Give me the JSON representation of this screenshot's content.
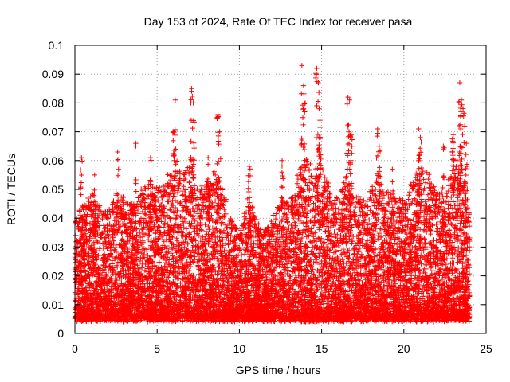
{
  "chart_data": {
    "type": "scatter",
    "title": "Day 153 of 2024, Rate Of TEC Index for receiver pasa",
    "xlabel": "GPS time / hours",
    "ylabel": "ROTI / TECUs",
    "xlim": [
      0,
      25
    ],
    "ylim": [
      0,
      0.1
    ],
    "x_ticks": [
      "0",
      "5",
      "10",
      "15",
      "20",
      "25"
    ],
    "y_ticks": [
      "0",
      "0.01",
      "0.02",
      "0.03",
      "0.04",
      "0.05",
      "0.06",
      "0.07",
      "0.08",
      "0.09",
      "0.1"
    ],
    "grid": true,
    "marker": "+",
    "series_color": "#ff0000",
    "points_per_hour": 450,
    "time_span_hours": [
      0,
      24
    ],
    "baseline_roti": 0.005,
    "typical_roti_range": [
      0.005,
      0.045
    ],
    "envelope": [
      [
        0.0,
        0.04
      ],
      [
        0.5,
        0.045
      ],
      [
        1.0,
        0.048
      ],
      [
        1.5,
        0.045
      ],
      [
        2.0,
        0.042
      ],
      [
        2.5,
        0.05
      ],
      [
        3.0,
        0.047
      ],
      [
        3.5,
        0.045
      ],
      [
        4.0,
        0.05
      ],
      [
        4.5,
        0.052
      ],
      [
        5.0,
        0.05
      ],
      [
        5.5,
        0.052
      ],
      [
        6.0,
        0.062
      ],
      [
        6.5,
        0.055
      ],
      [
        7.0,
        0.06
      ],
      [
        7.5,
        0.05
      ],
      [
        8.0,
        0.052
      ],
      [
        8.5,
        0.058
      ],
      [
        9.0,
        0.05
      ],
      [
        9.5,
        0.04
      ],
      [
        10.0,
        0.035
      ],
      [
        10.5,
        0.05
      ],
      [
        11.0,
        0.04
      ],
      [
        11.5,
        0.035
      ],
      [
        12.0,
        0.04
      ],
      [
        12.5,
        0.048
      ],
      [
        13.0,
        0.045
      ],
      [
        13.5,
        0.055
      ],
      [
        14.0,
        0.062
      ],
      [
        14.5,
        0.058
      ],
      [
        15.0,
        0.06
      ],
      [
        15.5,
        0.05
      ],
      [
        16.0,
        0.048
      ],
      [
        16.5,
        0.055
      ],
      [
        17.0,
        0.05
      ],
      [
        17.5,
        0.045
      ],
      [
        18.0,
        0.05
      ],
      [
        18.5,
        0.058
      ],
      [
        19.0,
        0.05
      ],
      [
        19.5,
        0.048
      ],
      [
        20.0,
        0.045
      ],
      [
        20.5,
        0.052
      ],
      [
        21.0,
        0.06
      ],
      [
        21.5,
        0.055
      ],
      [
        22.0,
        0.05
      ],
      [
        22.5,
        0.048
      ],
      [
        23.0,
        0.06
      ],
      [
        23.5,
        0.065
      ],
      [
        24.0,
        0.04
      ]
    ],
    "spikes": [
      {
        "x": 0.4,
        "y": 0.061
      },
      {
        "x": 1.2,
        "y": 0.055
      },
      {
        "x": 2.6,
        "y": 0.063
      },
      {
        "x": 3.7,
        "y": 0.066
      },
      {
        "x": 4.6,
        "y": 0.061
      },
      {
        "x": 6.1,
        "y": 0.081
      },
      {
        "x": 6.0,
        "y": 0.07
      },
      {
        "x": 7.1,
        "y": 0.085
      },
      {
        "x": 7.2,
        "y": 0.08
      },
      {
        "x": 8.1,
        "y": 0.061
      },
      {
        "x": 8.7,
        "y": 0.076
      },
      {
        "x": 8.8,
        "y": 0.07
      },
      {
        "x": 10.6,
        "y": 0.058
      },
      {
        "x": 12.6,
        "y": 0.06
      },
      {
        "x": 13.8,
        "y": 0.093
      },
      {
        "x": 13.9,
        "y": 0.086
      },
      {
        "x": 14.0,
        "y": 0.08
      },
      {
        "x": 14.7,
        "y": 0.092
      },
      {
        "x": 14.8,
        "y": 0.087
      },
      {
        "x": 14.9,
        "y": 0.074
      },
      {
        "x": 16.6,
        "y": 0.082
      },
      {
        "x": 16.7,
        "y": 0.081
      },
      {
        "x": 16.8,
        "y": 0.069
      },
      {
        "x": 18.4,
        "y": 0.071
      },
      {
        "x": 18.5,
        "y": 0.065
      },
      {
        "x": 19.3,
        "y": 0.057
      },
      {
        "x": 20.9,
        "y": 0.071
      },
      {
        "x": 21.0,
        "y": 0.068
      },
      {
        "x": 22.4,
        "y": 0.065
      },
      {
        "x": 23.0,
        "y": 0.069
      },
      {
        "x": 23.4,
        "y": 0.087
      },
      {
        "x": 23.5,
        "y": 0.081
      },
      {
        "x": 23.6,
        "y": 0.078
      },
      {
        "x": 23.7,
        "y": 0.072
      },
      {
        "x": 23.8,
        "y": 0.066
      }
    ]
  }
}
